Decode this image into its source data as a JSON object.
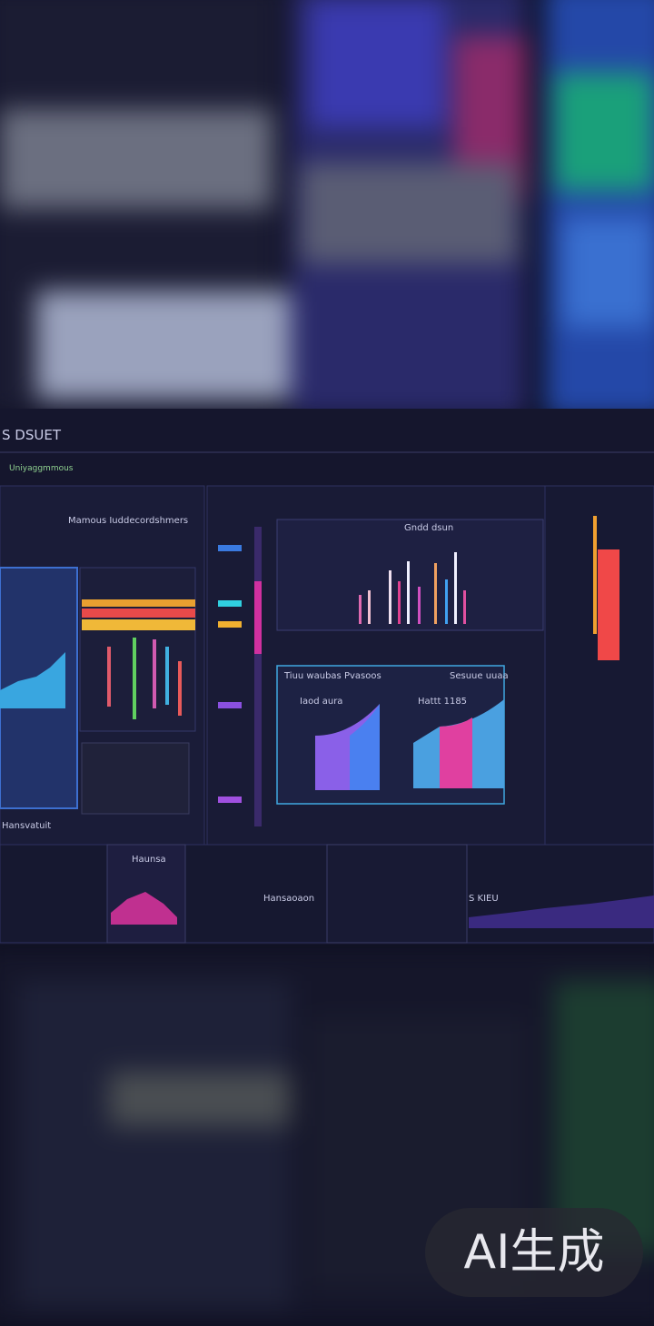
{
  "header": {
    "title": "S DSUET",
    "subtitle": "Uniyaggmmous"
  },
  "panels": [
    {
      "label": "Mamous Iuddecordshmers"
    },
    {
      "label": "Gndd dsun"
    },
    {
      "label": "Tiuu waubas Pvasoos"
    },
    {
      "label": "Sesuue uuaa"
    },
    {
      "label": "Iaod aura"
    },
    {
      "label": "Hattt 1185"
    },
    {
      "label": "Hansvatuit"
    },
    {
      "label": "Haunsa"
    },
    {
      "label": "Hansaoaon"
    },
    {
      "label": "S KIEU"
    }
  ],
  "watermark": "AI生成"
}
